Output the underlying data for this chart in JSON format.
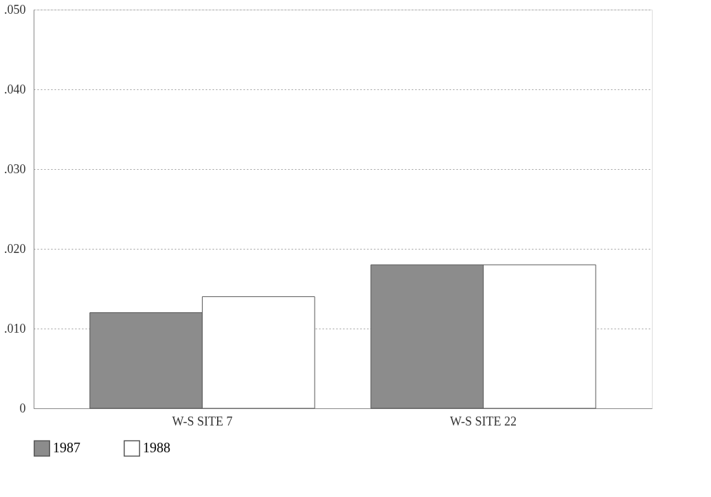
{
  "chart_data": {
    "type": "bar",
    "categories": [
      "W-S SITE 7",
      "W-S SITE 22"
    ],
    "series": [
      {
        "name": "1987",
        "color": "#8c8c8c",
        "values": [
          0.012,
          0.018
        ]
      },
      {
        "name": "1988",
        "color": "#ffffff",
        "values": [
          0.014,
          0.018
        ]
      }
    ],
    "ylim": [
      0,
      0.05
    ],
    "yticks": [
      {
        "value": 0,
        "label": "0"
      },
      {
        "value": 0.01,
        "label": ".010"
      },
      {
        "value": 0.02,
        "label": ".020"
      },
      {
        "value": 0.03,
        "label": ".030"
      },
      {
        "value": 0.04,
        "label": ".040"
      },
      {
        "value": 0.05,
        "label": ".050"
      }
    ],
    "grid": "y",
    "legend": "bottom"
  }
}
